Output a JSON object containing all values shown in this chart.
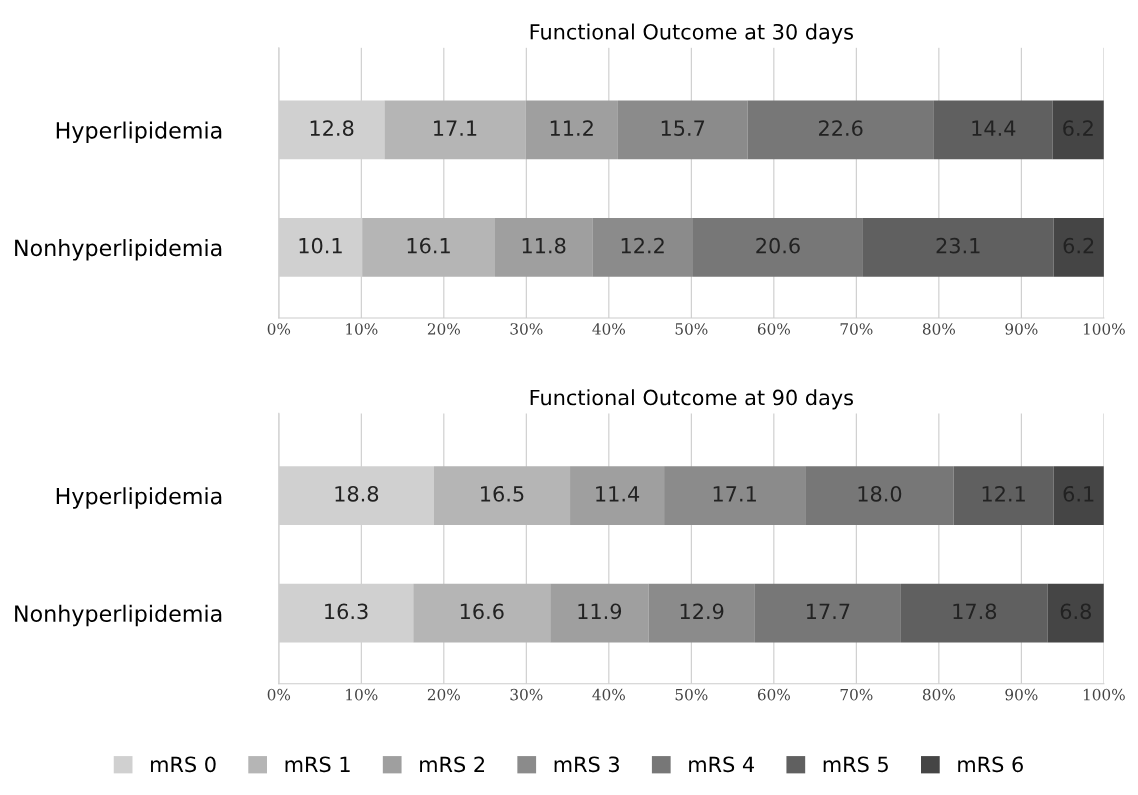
{
  "chart_data": [
    {
      "type": "bar",
      "title": "Functional Outcome at 30 days",
      "orientation": "horizontal",
      "stacked": true,
      "data_labels": true,
      "grid": "x",
      "categories": [
        "Hyperlipidemia",
        "Nonhyperlipidemia"
      ],
      "xlim": [
        0,
        100
      ],
      "xticks": [
        {
          "value": 0,
          "label": "0%"
        },
        {
          "value": 10,
          "label": "10%"
        },
        {
          "value": 20,
          "label": "20%"
        },
        {
          "value": 30,
          "label": "30%"
        },
        {
          "value": 40,
          "label": "40%"
        },
        {
          "value": 50,
          "label": "50%"
        },
        {
          "value": 60,
          "label": "60%"
        },
        {
          "value": 70,
          "label": "70%"
        },
        {
          "value": 80,
          "label": "80%"
        },
        {
          "value": 90,
          "label": "90%"
        },
        {
          "value": 100,
          "label": "100%"
        }
      ],
      "series": [
        {
          "color": "#d0d0d0",
          "values": [
            12.8,
            10.1
          ]
        },
        {
          "color": "#b5b5b5",
          "values": [
            17.1,
            16.1
          ]
        },
        {
          "color": "#9f9f9f",
          "values": [
            11.2,
            11.8
          ]
        },
        {
          "color": "#8b8b8b",
          "values": [
            15.7,
            12.2
          ]
        },
        {
          "color": "#777777",
          "values": [
            22.6,
            20.6
          ]
        },
        {
          "color": "#606060",
          "values": [
            14.4,
            23.1
          ]
        },
        {
          "color": "#454545",
          "values": [
            6.2,
            6.2
          ]
        }
      ]
    },
    {
      "type": "bar",
      "title": "Functional Outcome at 90 days",
      "orientation": "horizontal",
      "stacked": true,
      "data_labels": true,
      "grid": "x",
      "legend": "bottom",
      "categories": [
        "Hyperlipidemia",
        "Nonhyperlipidemia"
      ],
      "xlim": [
        0,
        100
      ],
      "xticks": [
        {
          "value": 0,
          "label": "0%"
        },
        {
          "value": 10,
          "label": "10%"
        },
        {
          "value": 20,
          "label": "20%"
        },
        {
          "value": 30,
          "label": "30%"
        },
        {
          "value": 40,
          "label": "40%"
        },
        {
          "value": 50,
          "label": "50%"
        },
        {
          "value": 60,
          "label": "60%"
        },
        {
          "value": 70,
          "label": "70%"
        },
        {
          "value": 80,
          "label": "80%"
        },
        {
          "value": 90,
          "label": "90%"
        },
        {
          "value": 100,
          "label": "100%"
        }
      ],
      "series": [
        {
          "name": "mRS 0",
          "color": "#d0d0d0",
          "values": [
            18.8,
            16.3
          ]
        },
        {
          "name": "mRS 1",
          "color": "#b5b5b5",
          "values": [
            16.5,
            16.6
          ]
        },
        {
          "name": "mRS 2",
          "color": "#9f9f9f",
          "values": [
            11.4,
            11.9
          ]
        },
        {
          "name": "mRS 3",
          "color": "#8b8b8b",
          "values": [
            17.1,
            12.9
          ]
        },
        {
          "name": "mRS 4",
          "color": "#777777",
          "values": [
            18.0,
            17.7
          ],
          "value_labels": [
            "18.0",
            "17.7"
          ]
        },
        {
          "name": "mRS 5",
          "color": "#606060",
          "values": [
            12.1,
            17.8
          ]
        },
        {
          "name": "mRS 6",
          "color": "#454545",
          "values": [
            6.1,
            6.8
          ]
        }
      ]
    }
  ]
}
